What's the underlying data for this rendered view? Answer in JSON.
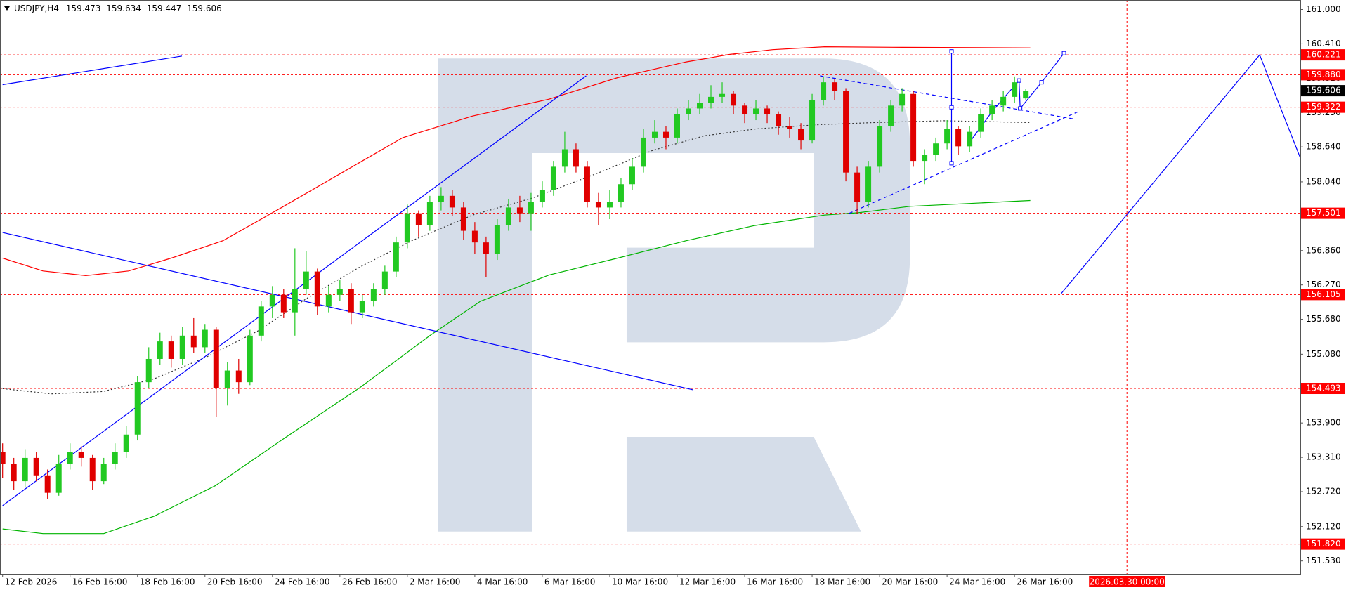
{
  "chart_data": {
    "type": "candlestick",
    "header": {
      "symbol": "USDJPY,H4",
      "open": 159.473,
      "high": 159.634,
      "low": 159.447,
      "close": 159.606
    },
    "up_color": "#22c922",
    "down_color": "#e00000",
    "level_color": "#ff0000",
    "xlim": [
      -0.23,
      115.42
    ],
    "ylim": [
      151.309,
      161.163
    ],
    "xticks": [
      {
        "value": 0,
        "label": "12 Feb 2026"
      },
      {
        "value": 6,
        "label": "16 Feb 16:00"
      },
      {
        "value": 12,
        "label": "18 Feb 16:00"
      },
      {
        "value": 18,
        "label": "20 Feb 16:00"
      },
      {
        "value": 24,
        "label": "24 Feb 16:00"
      },
      {
        "value": 30,
        "label": "26 Feb 16:00"
      },
      {
        "value": 36,
        "label": "2 Mar 16:00"
      },
      {
        "value": 42,
        "label": "4 Mar 16:00"
      },
      {
        "value": 48,
        "label": "6 Mar 16:00"
      },
      {
        "value": 54,
        "label": "10 Mar 16:00"
      },
      {
        "value": 60,
        "label": "12 Mar 16:00"
      },
      {
        "value": 66,
        "label": "16 Mar 16:00"
      },
      {
        "value": 72,
        "label": "18 Mar 16:00"
      },
      {
        "value": 78,
        "label": "20 Mar 16:00"
      },
      {
        "value": 84,
        "label": "24 Mar 16:00"
      },
      {
        "value": 90,
        "label": "26 Mar 16:00"
      }
    ],
    "yticks": [
      {
        "value": 161,
        "label": "161.000"
      },
      {
        "value": 160.41,
        "label": "160.410"
      },
      {
        "value": 159.82,
        "label": "159.820"
      },
      {
        "value": 159.23,
        "label": "159.230"
      },
      {
        "value": 158.64,
        "label": "158.640"
      },
      {
        "value": 158.04,
        "label": "158.040"
      },
      {
        "value": 156.86,
        "label": "156.860"
      },
      {
        "value": 156.27,
        "label": "156.270"
      },
      {
        "value": 155.68,
        "label": "155.680"
      },
      {
        "value": 155.08,
        "label": "155.080"
      },
      {
        "value": 153.9,
        "label": "153.900"
      },
      {
        "value": 153.31,
        "label": "153.310"
      },
      {
        "value": 152.72,
        "label": "152.720"
      },
      {
        "value": 152.12,
        "label": "152.120"
      },
      {
        "value": 151.53,
        "label": "151.530"
      }
    ],
    "levels": [
      160.221,
      {
        "value": 159.88,
        "label": "159.880"
      },
      159.322,
      157.501,
      156.105,
      154.493,
      {
        "value": 151.82,
        "label": "151.820"
      }
    ],
    "vline": {
      "value": 100,
      "label": "2026.03.30 00:00"
    },
    "candles": [
      [
        153.4,
        153.55,
        152.95,
        153.2
      ],
      [
        153.2,
        153.3,
        152.75,
        152.9
      ],
      [
        152.9,
        153.45,
        152.8,
        153.3
      ],
      [
        153.3,
        153.4,
        152.9,
        153.0
      ],
      [
        153.0,
        153.1,
        152.6,
        152.7
      ],
      [
        152.7,
        153.35,
        152.65,
        153.2
      ],
      [
        153.2,
        153.55,
        153.1,
        153.4
      ],
      [
        153.4,
        153.5,
        153.15,
        153.3
      ],
      [
        153.3,
        153.35,
        152.75,
        152.9
      ],
      [
        152.9,
        153.3,
        152.85,
        153.2
      ],
      [
        153.2,
        153.55,
        153.1,
        153.4
      ],
      [
        153.4,
        153.85,
        153.3,
        153.7
      ],
      [
        153.7,
        154.7,
        153.6,
        154.6
      ],
      [
        154.6,
        155.2,
        154.5,
        155.0
      ],
      [
        155.0,
        155.45,
        154.9,
        155.3
      ],
      [
        155.3,
        155.4,
        154.85,
        155.0
      ],
      [
        155.0,
        155.55,
        154.9,
        155.4
      ],
      [
        155.4,
        155.7,
        155.1,
        155.2
      ],
      [
        155.2,
        155.6,
        155.1,
        155.5
      ],
      [
        155.5,
        155.55,
        154.0,
        154.5
      ],
      [
        154.5,
        154.95,
        154.2,
        154.8
      ],
      [
        154.8,
        155.0,
        154.4,
        154.6
      ],
      [
        154.6,
        155.5,
        154.55,
        155.4
      ],
      [
        155.4,
        156.0,
        155.3,
        155.9
      ],
      [
        155.9,
        156.25,
        155.7,
        156.1
      ],
      [
        156.1,
        156.2,
        155.7,
        155.8
      ],
      [
        155.8,
        156.9,
        155.4,
        156.2
      ],
      [
        156.2,
        156.85,
        156.1,
        156.5
      ],
      [
        156.5,
        156.55,
        155.75,
        155.9
      ],
      [
        155.9,
        156.25,
        155.8,
        156.1
      ],
      [
        156.1,
        156.35,
        156.0,
        156.2
      ],
      [
        156.2,
        156.3,
        155.6,
        155.8
      ],
      [
        155.8,
        156.1,
        155.7,
        156.0
      ],
      [
        156.0,
        156.3,
        155.9,
        156.2
      ],
      [
        156.2,
        156.6,
        156.1,
        156.5
      ],
      [
        156.5,
        157.1,
        156.4,
        157.0
      ],
      [
        157.0,
        157.65,
        156.9,
        157.5
      ],
      [
        157.5,
        157.55,
        157.1,
        157.3
      ],
      [
        157.3,
        157.8,
        157.2,
        157.7
      ],
      [
        157.7,
        157.95,
        157.55,
        157.8
      ],
      [
        157.8,
        157.9,
        157.45,
        157.6
      ],
      [
        157.6,
        157.7,
        157.05,
        157.2
      ],
      [
        157.2,
        157.35,
        156.8,
        157.0
      ],
      [
        157.0,
        157.1,
        156.4,
        156.8
      ],
      [
        156.8,
        157.4,
        156.7,
        157.3
      ],
      [
        157.3,
        157.75,
        157.2,
        157.6
      ],
      [
        157.6,
        157.8,
        157.35,
        157.5
      ],
      [
        157.5,
        157.85,
        157.2,
        157.7
      ],
      [
        157.7,
        158.05,
        157.6,
        157.9
      ],
      [
        157.9,
        158.4,
        157.8,
        158.3
      ],
      [
        158.3,
        158.9,
        158.2,
        158.6
      ],
      [
        158.6,
        158.7,
        158.2,
        158.3
      ],
      [
        158.3,
        158.4,
        157.6,
        157.7
      ],
      [
        157.7,
        157.85,
        157.3,
        157.6
      ],
      [
        157.6,
        157.9,
        157.4,
        157.7
      ],
      [
        157.7,
        158.1,
        157.6,
        158.0
      ],
      [
        158.0,
        158.45,
        157.9,
        158.3
      ],
      [
        158.3,
        158.95,
        158.2,
        158.8
      ],
      [
        158.8,
        159.1,
        158.7,
        158.9
      ],
      [
        158.9,
        159.0,
        158.6,
        158.8
      ],
      [
        158.8,
        159.3,
        158.7,
        159.2
      ],
      [
        159.2,
        159.45,
        159.1,
        159.3
      ],
      [
        159.3,
        159.55,
        159.2,
        159.4
      ],
      [
        159.4,
        159.7,
        159.3,
        159.5
      ],
      [
        159.5,
        159.75,
        159.4,
        159.55
      ],
      [
        159.55,
        159.6,
        159.2,
        159.35
      ],
      [
        159.35,
        159.4,
        159.05,
        159.2
      ],
      [
        159.2,
        159.45,
        159.1,
        159.3
      ],
      [
        159.3,
        159.35,
        159.05,
        159.2
      ],
      [
        159.2,
        159.25,
        158.85,
        159.0
      ],
      [
        159.0,
        159.15,
        158.8,
        158.95
      ],
      [
        158.95,
        159.05,
        158.6,
        158.75
      ],
      [
        158.75,
        159.55,
        158.7,
        159.45
      ],
      [
        159.45,
        159.85,
        159.35,
        159.75
      ],
      [
        159.75,
        159.8,
        159.45,
        159.6
      ],
      [
        159.6,
        159.65,
        158.05,
        158.2
      ],
      [
        158.2,
        158.3,
        157.5,
        157.7
      ],
      [
        157.7,
        158.4,
        157.6,
        158.3
      ],
      [
        158.3,
        159.1,
        158.2,
        159.0
      ],
      [
        159.0,
        159.45,
        158.9,
        159.35
      ],
      [
        159.35,
        159.65,
        159.25,
        159.55
      ],
      [
        159.55,
        159.6,
        158.3,
        158.4
      ],
      [
        158.4,
        158.6,
        158.0,
        158.5
      ],
      [
        158.5,
        158.8,
        158.4,
        158.7
      ],
      [
        158.7,
        159.1,
        158.6,
        158.95
      ],
      [
        158.95,
        159.0,
        158.5,
        158.65
      ],
      [
        158.65,
        159.0,
        158.55,
        158.9
      ],
      [
        158.9,
        159.3,
        158.8,
        159.2
      ],
      [
        159.2,
        159.45,
        159.1,
        159.35
      ],
      [
        159.35,
        159.6,
        159.25,
        159.5
      ],
      [
        159.5,
        159.85,
        159.4,
        159.75
      ],
      [
        159.473,
        159.634,
        159.447,
        159.606
      ]
    ],
    "overlays": [
      {
        "color": "#ff0000",
        "x": [
          0,
          3.6,
          7.4,
          11.2,
          15.0,
          19.6,
          25.0,
          30.3,
          35.6,
          41.8,
          48.6,
          54.7,
          60.8,
          64.7,
          68.5,
          73.1,
          80.0,
          91.4
        ],
        "y": [
          156.73,
          156.51,
          156.43,
          156.51,
          156.73,
          157.03,
          157.62,
          158.21,
          158.8,
          159.17,
          159.46,
          159.83,
          160.1,
          160.23,
          160.31,
          160.36,
          160.35,
          160.34
        ]
      },
      {
        "color": "#00b400",
        "x": [
          0,
          3.6,
          9.0,
          13.5,
          18.9,
          25.0,
          31.8,
          38.0,
          42.5,
          48.6,
          54.7,
          60.8,
          66.9,
          73.1,
          76.1,
          80.7,
          91.4
        ],
        "y": [
          152.08,
          152.0,
          152.0,
          152.3,
          152.82,
          153.63,
          154.51,
          155.4,
          155.99,
          156.44,
          156.73,
          157.03,
          157.29,
          157.47,
          157.51,
          157.62,
          157.72
        ]
      },
      {
        "color": "#303030",
        "dash": "dot",
        "x": [
          0,
          4.35,
          8.93,
          13.5,
          18.1,
          22.7,
          27.3,
          31.8,
          36.4,
          41.8,
          47.1,
          53.2,
          57.8,
          62.4,
          67.0,
          72.3,
          77.6,
          83.7,
          91.4
        ],
        "y": [
          154.49,
          154.4,
          154.44,
          154.66,
          155.03,
          155.48,
          156.07,
          156.58,
          157.03,
          157.47,
          157.76,
          158.21,
          158.58,
          158.83,
          158.95,
          159.02,
          159.06,
          159.09,
          159.06
        ]
      },
      {
        "color": "#0000ff",
        "x": [
          0,
          15.95
        ],
        "y": [
          159.71,
          160.2
        ]
      },
      {
        "color": "#0000ff",
        "x": [
          0,
          51.9
        ],
        "y": [
          152.48,
          159.86
        ]
      },
      {
        "color": "#0000ff",
        "x": [
          0,
          61.4
        ],
        "y": [
          157.17,
          154.47
        ]
      },
      {
        "color": "#0000ff",
        "x": [
          94.1,
          111.8,
          115.4
        ],
        "y": [
          156.11,
          160.22,
          158.46
        ]
      },
      {
        "color": "#0000ff",
        "markers": true,
        "x": [
          86.0,
          88.1,
          90.4,
          90.5,
          92.4,
          94.4
        ],
        "y": [
          158.72,
          159.27,
          159.78,
          159.3,
          159.75,
          160.25
        ]
      },
      {
        "color": "#0000ff",
        "markers": true,
        "x": [
          84.4,
          84.4,
          84.4
        ],
        "y": [
          160.28,
          159.32,
          158.36
        ]
      },
      {
        "color": "#0000ff",
        "dash": "dash",
        "x": [
          72.7,
          95.3
        ],
        "y": [
          159.86,
          159.12
        ]
      },
      {
        "color": "#0000ff",
        "dash": "dash",
        "x": [
          75.3,
          95.6
        ],
        "y": [
          157.5,
          159.24
        ]
      }
    ]
  }
}
